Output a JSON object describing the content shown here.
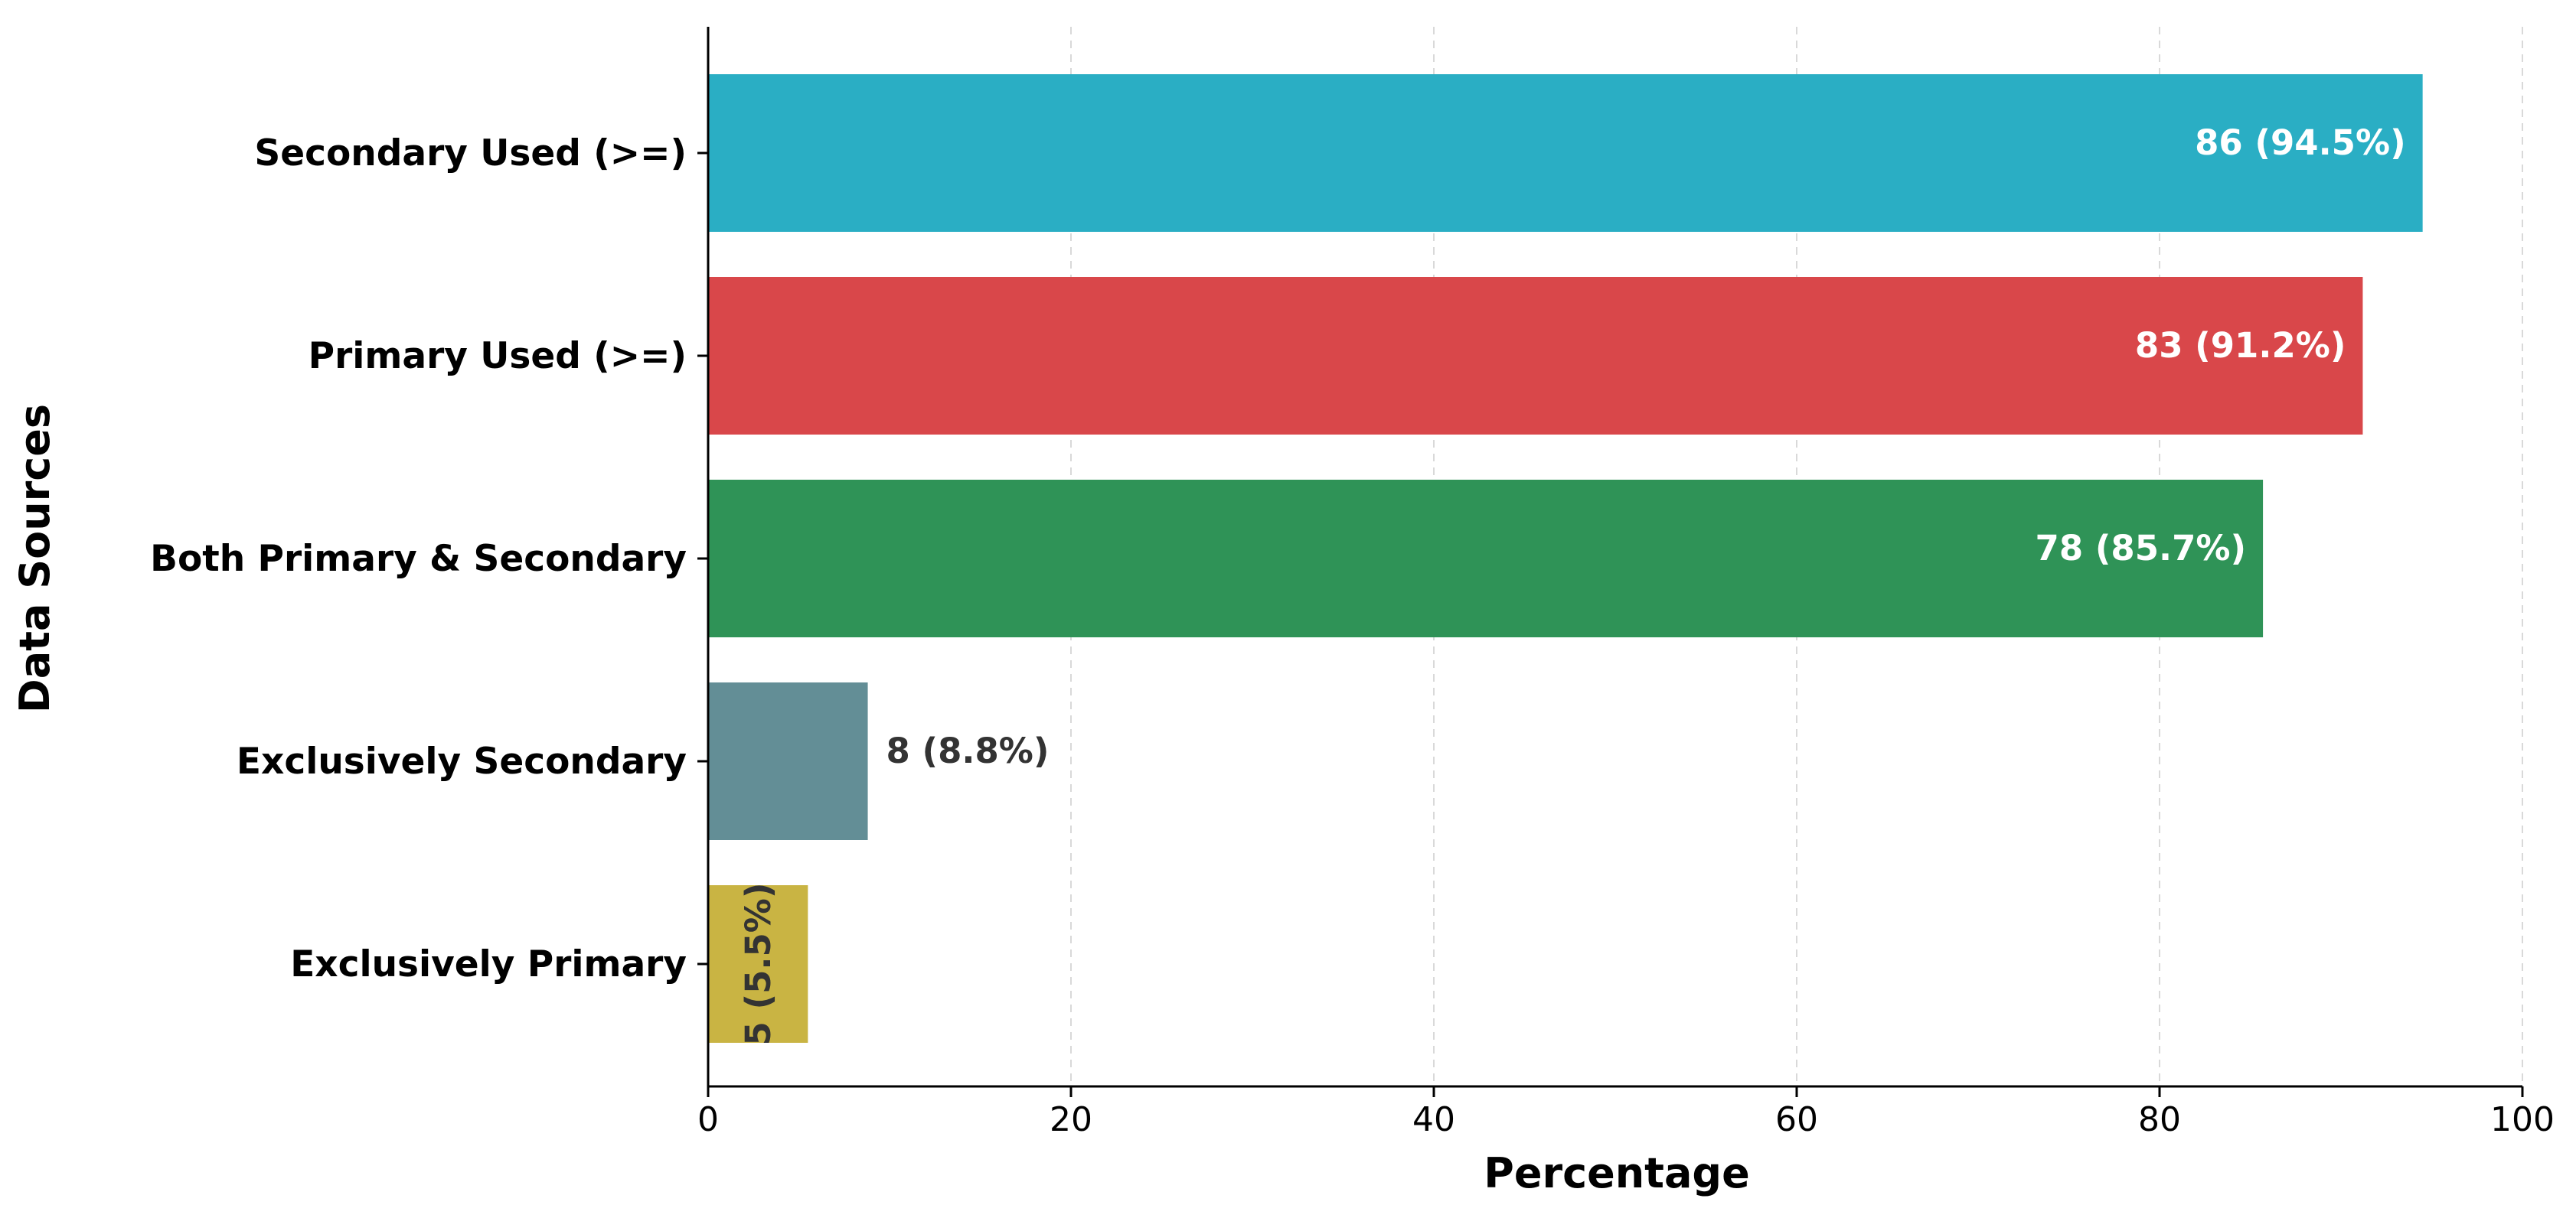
{
  "chart_data": {
    "type": "bar",
    "orientation": "horizontal",
    "categories": [
      "Secondary Used (>=)",
      "Primary Used (>=)",
      "Both Primary & Secondary",
      "Exclusively Secondary",
      "Exclusively Primary"
    ],
    "values": [
      94.5,
      91.2,
      85.7,
      8.8,
      5.5
    ],
    "counts": [
      86,
      83,
      78,
      8,
      5
    ],
    "data_labels": [
      "86 (94.5%)",
      "83 (91.2%)",
      "78 (85.7%)",
      "8 (8.8%)",
      "5 (5.5%)"
    ],
    "colors": [
      "#2aaec4",
      "#d9474a",
      "#2f9357",
      "#638e96",
      "#c9b443"
    ],
    "label_colors": [
      "#ffffff",
      "#ffffff",
      "#ffffff",
      "#333333",
      "#333333"
    ],
    "xlabel": "Percentage",
    "ylabel": "Data Sources",
    "xlim": [
      0,
      100
    ],
    "xticks": [
      0,
      20,
      40,
      60,
      80,
      100
    ],
    "xtick_labels": [
      "0",
      "20",
      "40",
      "60",
      "80",
      "100"
    ],
    "grid": "vertical-dashed",
    "legend": "none"
  }
}
